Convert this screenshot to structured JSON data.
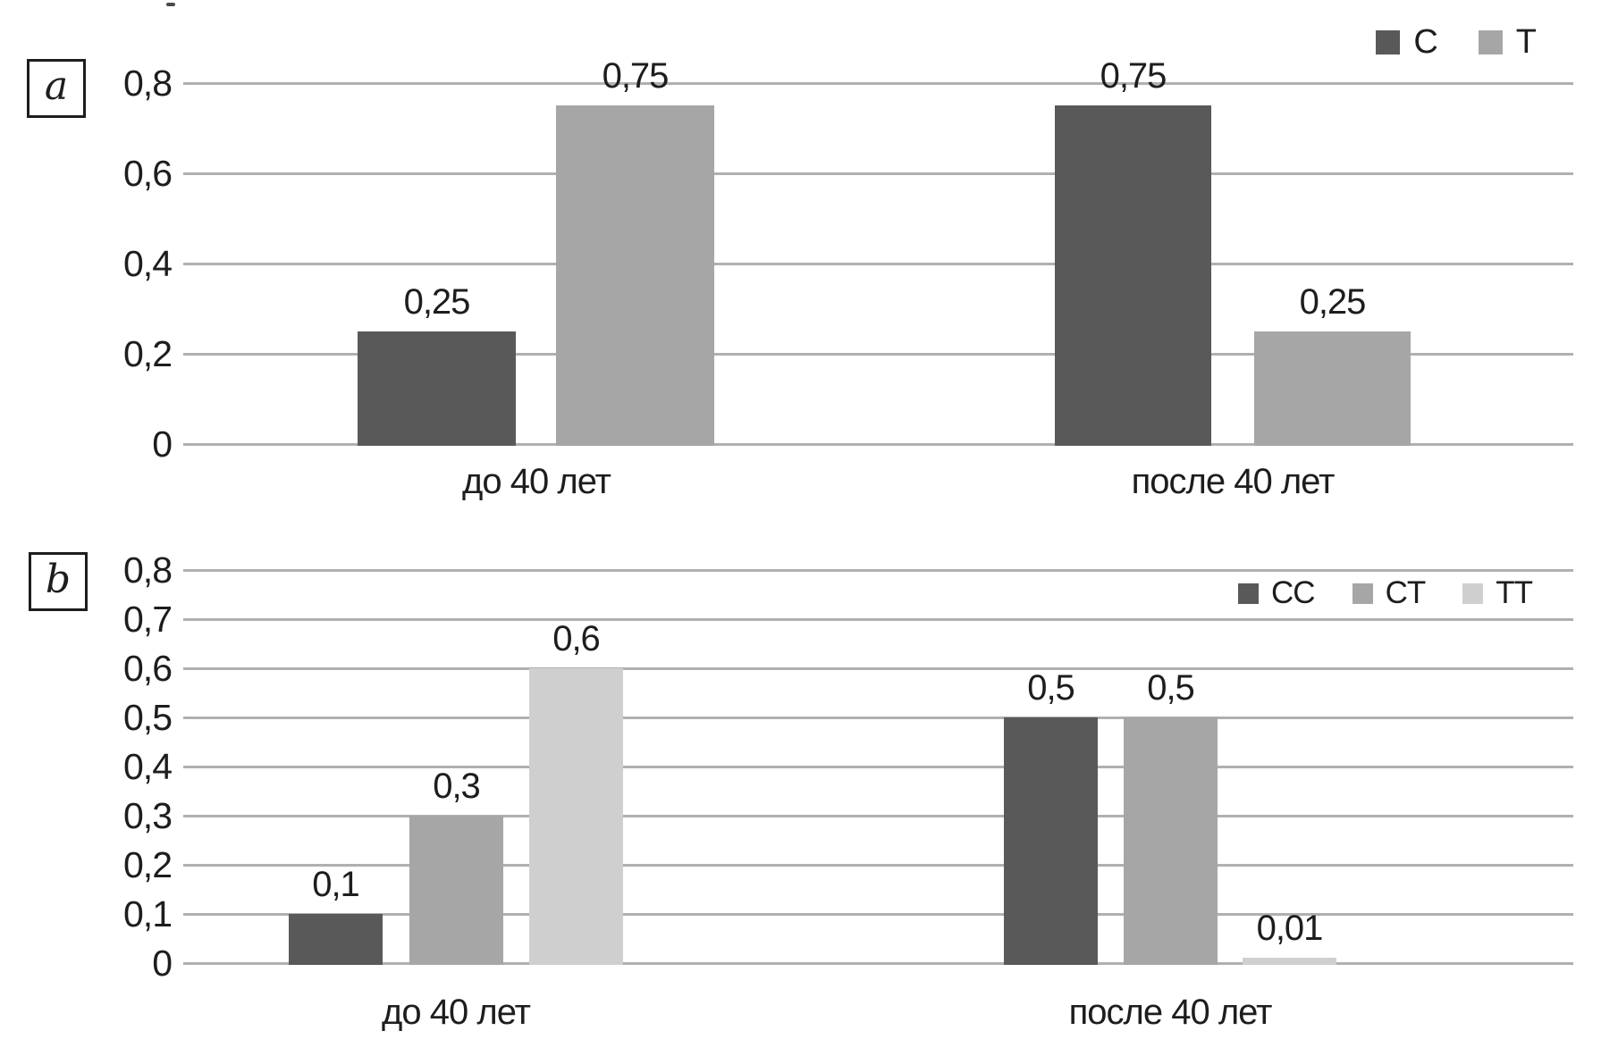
{
  "chart_data": [
    {
      "panel": "a",
      "type": "bar",
      "title": "",
      "xlabel": "",
      "ylabel": "",
      "ylim": [
        0,
        0.8
      ],
      "grid": true,
      "legend_position": "top-right",
      "categories": [
        "до 40 лет",
        "после 40 лет"
      ],
      "y_ticks": [
        {
          "value": 0,
          "label": "0"
        },
        {
          "value": 0.2,
          "label": "0,2"
        },
        {
          "value": 0.4,
          "label": "0,4"
        },
        {
          "value": 0.6,
          "label": "0,6"
        },
        {
          "value": 0.8,
          "label": "0,8"
        }
      ],
      "series": [
        {
          "name": "C",
          "color": "#595959",
          "values": [
            0.25,
            0.75
          ],
          "value_labels": [
            "0,25",
            "0,75"
          ]
        },
        {
          "name": "T",
          "color": "#a6a6a6",
          "values": [
            0.75,
            0.25
          ],
          "value_labels": [
            "0,75",
            "0,25"
          ]
        }
      ]
    },
    {
      "panel": "b",
      "type": "bar",
      "title": "",
      "xlabel": "",
      "ylabel": "",
      "ylim": [
        0,
        0.8
      ],
      "grid": true,
      "legend_position": "top-right",
      "categories": [
        "до 40 лет",
        "после 40 лет"
      ],
      "y_ticks": [
        {
          "value": 0,
          "label": "0"
        },
        {
          "value": 0.1,
          "label": "0,1"
        },
        {
          "value": 0.2,
          "label": "0,2"
        },
        {
          "value": 0.3,
          "label": "0,3"
        },
        {
          "value": 0.4,
          "label": "0,4"
        },
        {
          "value": 0.5,
          "label": "0,5"
        },
        {
          "value": 0.6,
          "label": "0,6"
        },
        {
          "value": 0.7,
          "label": "0,7"
        },
        {
          "value": 0.8,
          "label": "0,8"
        }
      ],
      "series": [
        {
          "name": "CC",
          "color": "#595959",
          "values": [
            0.1,
            0.5
          ],
          "value_labels": [
            "0,1",
            "0,5"
          ]
        },
        {
          "name": "CT",
          "color": "#a6a6a6",
          "values": [
            0.3,
            0.5
          ],
          "value_labels": [
            "0,3",
            "0,5"
          ]
        },
        {
          "name": "TT",
          "color": "#cfcfcf",
          "values": [
            0.6,
            0.01
          ],
          "value_labels": [
            "0,6",
            "0,01"
          ]
        }
      ]
    }
  ]
}
